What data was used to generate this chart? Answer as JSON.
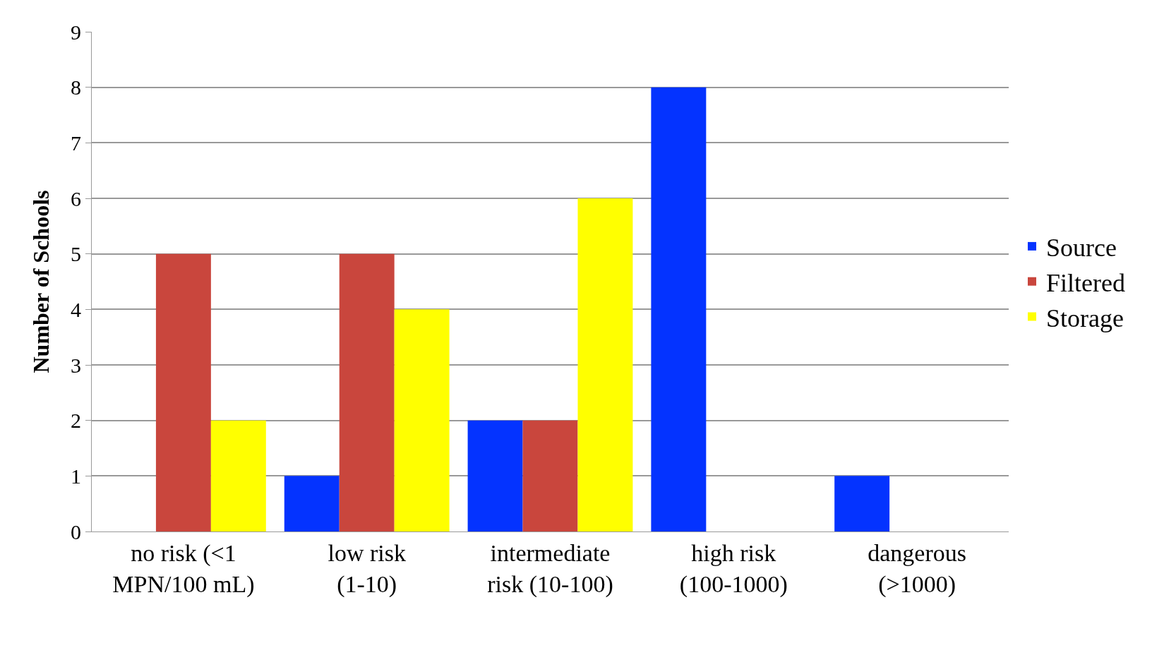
{
  "chart_data": {
    "type": "bar",
    "ylabel": "Number of Schools",
    "categories": [
      "no risk (<1 MPN/100 mL)",
      "low risk (1-10)",
      "intermediate risk (10-100)",
      "high risk (100-1000)",
      "dangerous (>1000)"
    ],
    "series": [
      {
        "name": "Source",
        "color": "#0433ff",
        "values": [
          0,
          1,
          2,
          8,
          1
        ]
      },
      {
        "name": "Filtered",
        "color": "#c9463d",
        "values": [
          5,
          5,
          2,
          0,
          0
        ]
      },
      {
        "name": "Storage",
        "color": "#ffff00",
        "values": [
          2,
          4,
          6,
          0,
          0
        ]
      }
    ],
    "ylim": [
      0,
      9
    ],
    "yticks": [
      0,
      1,
      2,
      3,
      4,
      5,
      6,
      7,
      8,
      9
    ],
    "grid": "y",
    "legend": "right"
  }
}
